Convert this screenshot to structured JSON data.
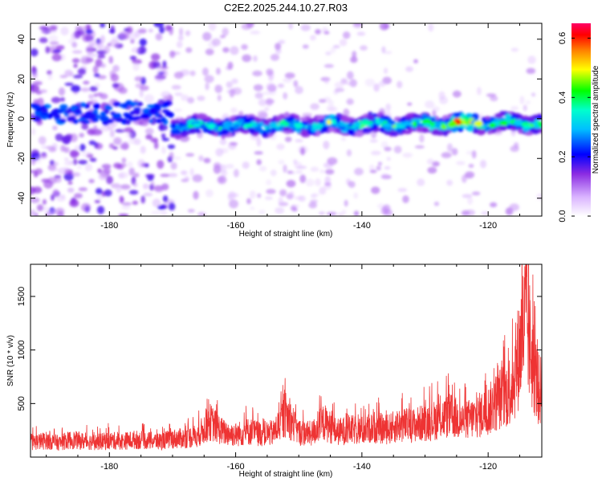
{
  "title": "C2E2.2025.244.10.27.R03",
  "chart_data": [
    {
      "type": "heatmap",
      "title": "C2E2.2025.244.10.27.R03",
      "xlabel": "Height of straight line (km)",
      "ylabel": "Frequency (Hz)",
      "xlim": [
        -192.5,
        -111.5
      ],
      "ylim": [
        -49,
        48
      ],
      "xticks": [
        -180,
        -160,
        -140,
        -120
      ],
      "yticks": [
        -40,
        -20,
        0,
        20,
        40
      ],
      "colorbar": {
        "label": "Normalized spectral amplitude",
        "range": [
          0,
          0.65
        ],
        "ticks": [
          0.0,
          0.2,
          0.4,
          0.6
        ],
        "colors": [
          "#ffffff",
          "#b366ff",
          "#0000ff",
          "#00ffff",
          "#00ff00",
          "#ffff00",
          "#ff8000",
          "#ff0000",
          "#ff0066"
        ]
      },
      "ridge": {
        "description": "signal band",
        "start_km": -170,
        "freq_at_start_hz": -4,
        "freq_at_end_hz": -2,
        "peak_km": -124,
        "peak_amplitude": 0.65
      }
    },
    {
      "type": "line",
      "xlabel": "Height of straight line (km)",
      "ylabel": "SNR (10 * v/v)",
      "xlim": [
        -192.5,
        -111.5
      ],
      "ylim": [
        0,
        1800
      ],
      "xticks": [
        -180,
        -160,
        -140,
        -120
      ],
      "yticks": [
        500,
        1000,
        1500
      ],
      "color": "#ee3333",
      "series": [
        {
          "name": "SNR",
          "x": [
            -192,
            -190,
            -188,
            -186,
            -184,
            -182,
            -180,
            -178,
            -176,
            -174,
            -172,
            -170,
            -168,
            -166,
            -164,
            -162,
            -160,
            -158,
            -156,
            -154,
            -152,
            -150,
            -148,
            -146,
            -144,
            -142,
            -140,
            -138,
            -136,
            -134,
            -132,
            -130,
            -128,
            -126,
            -124,
            -122,
            -120,
            -119,
            -118,
            -117,
            -116,
            -115,
            -114,
            -113,
            -112
          ],
          "values": [
            180,
            200,
            170,
            210,
            190,
            180,
            200,
            190,
            210,
            200,
            190,
            220,
            230,
            260,
            420,
            300,
            270,
            310,
            280,
            290,
            520,
            300,
            280,
            420,
            300,
            330,
            320,
            360,
            330,
            390,
            380,
            420,
            450,
            500,
            430,
            480,
            560,
            640,
            720,
            760,
            900,
            1300,
            1700,
            1150,
            800
          ]
        }
      ]
    }
  ]
}
